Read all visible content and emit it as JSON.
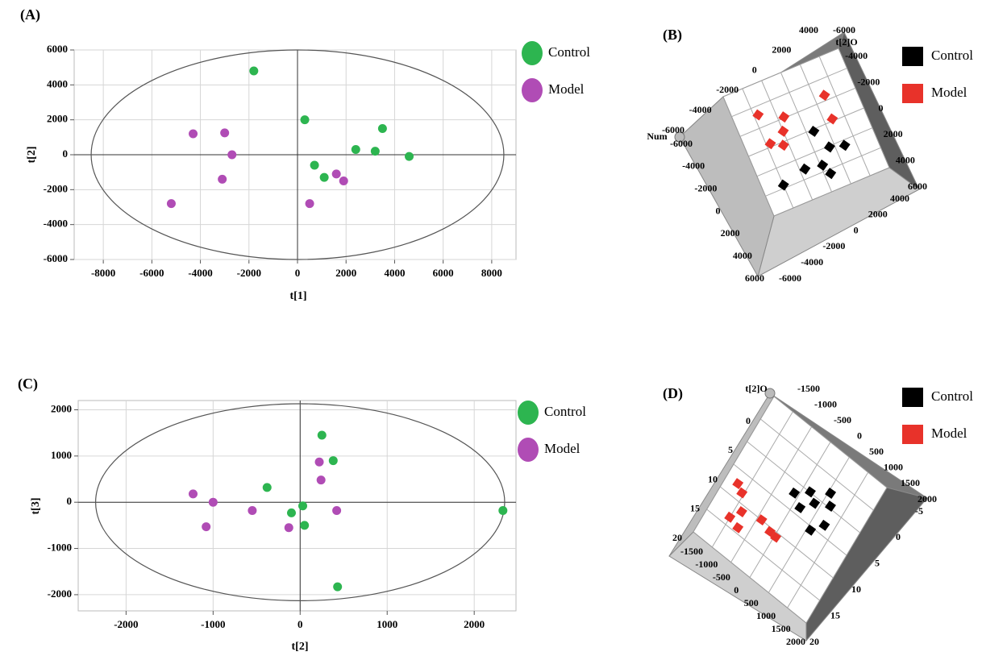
{
  "chart_data": [
    {
      "type": "scatter",
      "panel": "(A)",
      "xlabel": "t[1]",
      "ylabel": "t[2]",
      "xlim": [
        -9200,
        9000
      ],
      "ylim": [
        -6000,
        6000
      ],
      "xticks": [
        -8000,
        -6000,
        -4000,
        -2000,
        0,
        2000,
        4000,
        6000,
        8000
      ],
      "yticks": [
        -6000,
        -4000,
        -2000,
        0,
        2000,
        4000,
        6000
      ],
      "grid": true,
      "ellipse": [
        8500,
        6000
      ],
      "series": [
        {
          "name": "Control",
          "color": "#2db550",
          "x": [
            -1800,
            300,
            700,
            1100,
            2400,
            3200,
            3500,
            4600
          ],
          "y": [
            4800,
            2000,
            -600,
            -1300,
            300,
            200,
            1500,
            -100
          ]
        },
        {
          "name": "Model",
          "color": "#b04cb5",
          "x": [
            -4300,
            -3000,
            -2700,
            -3100,
            -5200,
            500,
            1600,
            1900
          ],
          "y": [
            1200,
            1250,
            0,
            -1400,
            -2800,
            -2800,
            -1100,
            -1500
          ]
        }
      ]
    },
    {
      "type": "scatter3d",
      "panel": "(B)",
      "xlim": [
        -6000,
        6000
      ],
      "ylim": [
        -6000,
        6000
      ],
      "axes": [
        {
          "ticks": [
            4000,
            2000,
            0,
            -2000,
            -4000,
            -6000
          ]
        },
        {
          "name": "t[2]O",
          "ticks": [
            -6000,
            -4000,
            -2000,
            0,
            2000,
            4000,
            6000
          ]
        },
        {
          "name": "Num",
          "ticks": [
            -6000,
            -4000,
            -2000,
            0,
            2000,
            4000,
            6000
          ]
        },
        {
          "ticks": [
            -6000,
            -4000,
            -2000,
            0,
            2000,
            4000
          ]
        }
      ],
      "series": [
        {
          "name": "Control",
          "color": "#000000",
          "x": [
            700,
            1500,
            2900,
            -1500,
            200,
            600,
            -4000
          ],
          "y": [
            200,
            2100,
            2500,
            3100,
            3400,
            4400,
            3700
          ]
        },
        {
          "name": "Model",
          "color": "#e8322a",
          "x": [
            -3600,
            -1400,
            3000,
            2800,
            -2000,
            -3600,
            -2500
          ],
          "y": [
            -3200,
            -2100,
            -2500,
            -200,
            -900,
            -300,
            300
          ]
        }
      ]
    },
    {
      "type": "scatter",
      "panel": "(C)",
      "xlabel": "t[2]",
      "ylabel": "t[3]",
      "xlim": [
        -2550,
        2480
      ],
      "ylim": [
        -2350,
        2200
      ],
      "xticks": [
        -2000,
        -1000,
        0,
        1000,
        2000
      ],
      "yticks": [
        -2000,
        -1000,
        0,
        1000,
        2000
      ],
      "grid": true,
      "ellipse": [
        2350,
        2130
      ],
      "series": [
        {
          "name": "Control",
          "color": "#2db550",
          "x": [
            250,
            380,
            -380,
            -100,
            30,
            50,
            430,
            2330
          ],
          "y": [
            1450,
            900,
            320,
            -230,
            -80,
            -500,
            -1830,
            -180
          ]
        },
        {
          "name": "Model",
          "color": "#b04cb5",
          "x": [
            -1230,
            -1000,
            -1080,
            -550,
            -130,
            220,
            240,
            420
          ],
          "y": [
            180,
            0,
            -530,
            -180,
            -550,
            870,
            480,
            -180
          ]
        }
      ]
    },
    {
      "type": "scatter3d",
      "panel": "(D)",
      "xlim": [
        -1500,
        2000
      ],
      "ylim": [
        0,
        20
      ],
      "axes": [
        {
          "name": "t[2]O",
          "ticks": [
            -1500,
            -1000,
            -500,
            0,
            500,
            1000,
            1500,
            2000
          ]
        },
        {
          "ticks": [
            0,
            5,
            10,
            15,
            20
          ]
        },
        {
          "ticks": [
            -1500,
            -1000,
            -500,
            0,
            500,
            1000,
            1500,
            2000
          ]
        },
        {
          "ticks": [
            -5,
            0,
            5,
            10,
            15,
            20
          ]
        }
      ],
      "series": [
        {
          "name": "Control",
          "color": "#000000",
          "x": [
            130,
            450,
            890,
            430,
            680,
            1050,
            930,
            1160
          ],
          "y": [
            8,
            6.6,
            5.1,
            9,
            7.4,
            6.4,
            10.4,
            8.8
          ]
        },
        {
          "name": "Model",
          "color": "#e8322a",
          "x": [
            -1170,
            -970,
            -740,
            -920,
            -620,
            -220,
            100,
            290
          ],
          "y": [
            11.6,
            12.2,
            14.1,
            15.6,
            16,
            13.3,
            13.8,
            13.9
          ]
        }
      ]
    }
  ]
}
